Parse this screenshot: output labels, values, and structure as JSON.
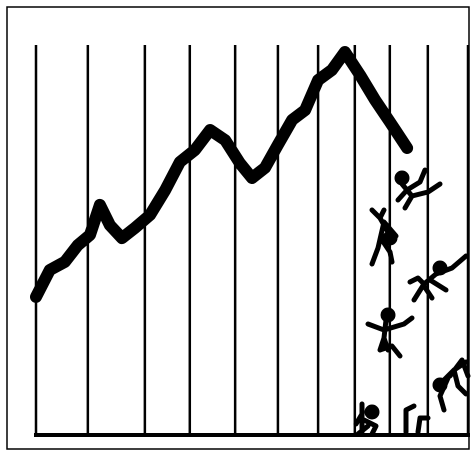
{
  "chart_data": {
    "type": "line",
    "color": "#000000",
    "grid": true,
    "x": [
      0,
      3.2,
      6.7,
      9.7,
      12.5,
      14.8,
      17.1,
      19.9,
      22.9,
      26.4,
      29.9,
      33.3,
      36.8,
      40.3,
      43.8,
      47.2,
      50,
      53,
      56,
      59.3,
      62.3,
      65.3,
      68.5,
      71.5,
      75,
      78.5,
      81.9,
      85.9
    ],
    "values": [
      35.4,
      42.3,
      44.4,
      48.7,
      51.3,
      59.0,
      53.8,
      50.5,
      53.1,
      56.4,
      62.8,
      70,
      73.1,
      78.2,
      75.6,
      69.7,
      65.9,
      68.5,
      74.4,
      80.8,
      83.3,
      91,
      93.6,
      98.2,
      92.3,
      85.9,
      80.3,
      73.6
    ],
    "xlim": [
      0,
      100
    ],
    "ylim": [
      0,
      100
    ],
    "xticks": [
      0,
      12,
      25.2,
      35.6,
      46.1,
      56,
      65.3,
      73.8,
      81.9,
      90.7,
      100
    ]
  }
}
